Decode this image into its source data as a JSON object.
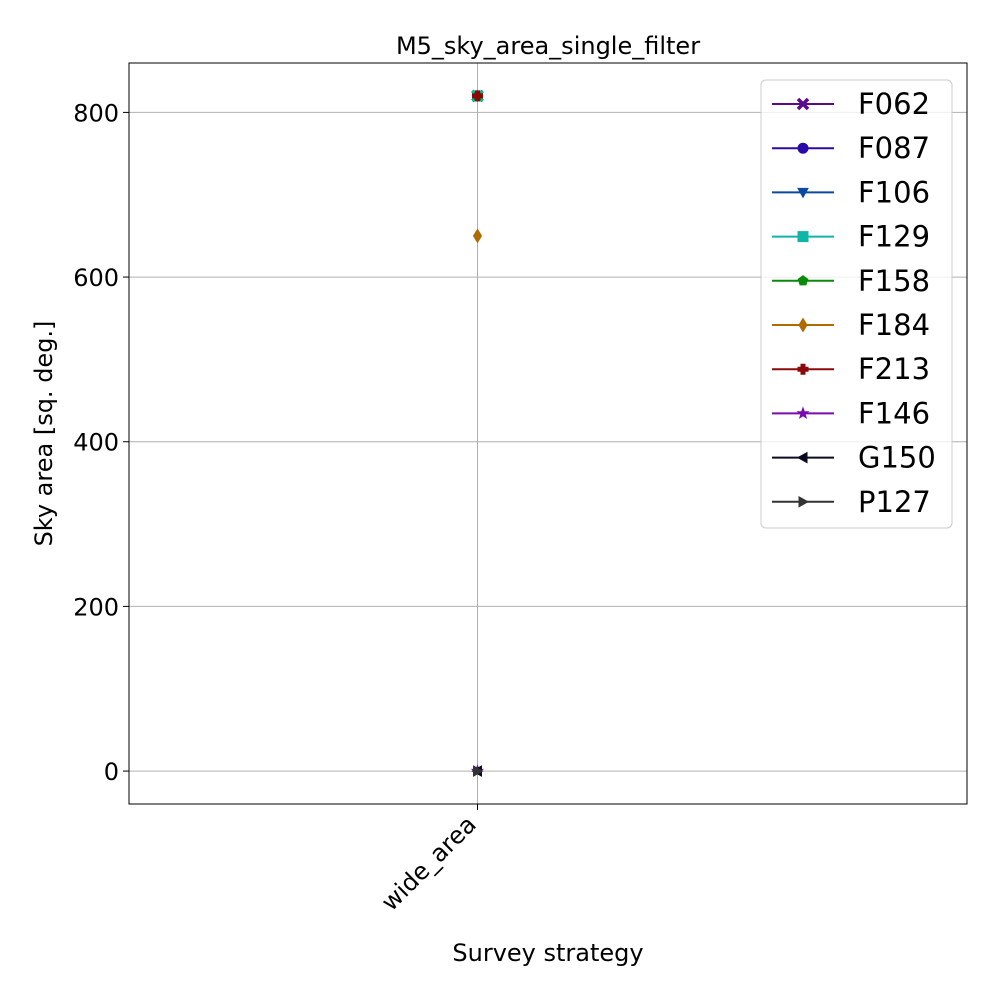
{
  "chart_data": {
    "type": "line",
    "title": "M5_sky_area_single_filter",
    "xlabel": "Survey strategy",
    "ylabel": "Sky area [sq. deg.]",
    "categories": [
      "wide_area"
    ],
    "ylim": [
      -40,
      860
    ],
    "yticks": [
      0,
      200,
      400,
      600,
      800
    ],
    "grid": true,
    "legend_position": "top-right",
    "series": [
      {
        "name": "F062",
        "values": [
          820
        ],
        "color": "#5a0a8c",
        "marker": "X"
      },
      {
        "name": "F087",
        "values": [
          820
        ],
        "color": "#2a0aa8",
        "marker": "circle"
      },
      {
        "name": "F106",
        "values": [
          820
        ],
        "color": "#0a4aa0",
        "marker": "triangle-down"
      },
      {
        "name": "F129",
        "values": [
          820
        ],
        "color": "#11b5a5",
        "marker": "square"
      },
      {
        "name": "F158",
        "values": [
          820
        ],
        "color": "#0a8a0a",
        "marker": "pentagon"
      },
      {
        "name": "F184",
        "values": [
          650
        ],
        "color": "#b06a00",
        "marker": "diamond"
      },
      {
        "name": "F213",
        "values": [
          820
        ],
        "color": "#8a0a0a",
        "marker": "plus"
      },
      {
        "name": "F146",
        "values": [
          0
        ],
        "color": "#7a0ab0",
        "marker": "star"
      },
      {
        "name": "G150",
        "values": [
          0
        ],
        "color": "#0a0a20",
        "marker": "triangle-left"
      },
      {
        "name": "P127",
        "values": [
          0
        ],
        "color": "#333333",
        "marker": "triangle-right"
      }
    ]
  }
}
